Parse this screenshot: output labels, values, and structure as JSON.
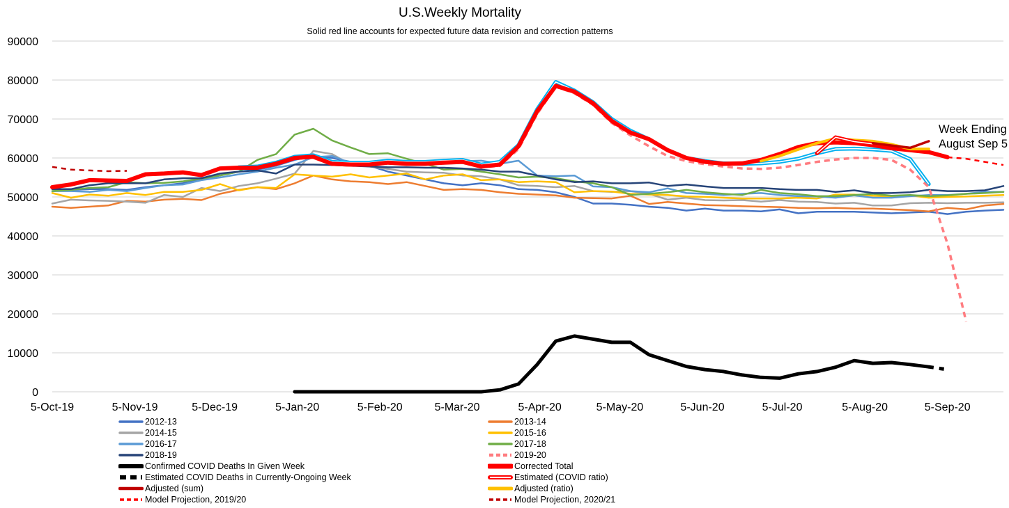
{
  "chart_data": {
    "type": "line",
    "title": "U.S.Weekly Mortality",
    "subtitle": "Solid red line accounts for expected future data revision and correction patterns",
    "annotation": [
      "Week Ending",
      "August Sep 5"
    ],
    "xlabel": "",
    "ylabel": "",
    "x_unit": "weeks since 5-Oct-19",
    "xlim": [
      0,
      51
    ],
    "ylim": [
      0,
      90000
    ],
    "yticks": [
      0,
      10000,
      20000,
      30000,
      40000,
      50000,
      60000,
      70000,
      80000,
      90000
    ],
    "xtick_labels": [
      "5-Oct-19",
      "5-Nov-19",
      "5-Dec-19",
      "5-Jan-20",
      "5-Feb-20",
      "5-Mar-20",
      "5-Apr-20",
      "5-May-20",
      "5-Jun-20",
      "5-Jul-20",
      "5-Aug-20",
      "5-Sep-20"
    ],
    "xtick_weeks": [
      0,
      4.43,
      8.71,
      13.14,
      17.57,
      21.71,
      26.14,
      30.43,
      34.86,
      39.14,
      43.57,
      48
    ],
    "grid": true,
    "legend_position": "bottom",
    "series": [
      {
        "name": "2012-13",
        "color": "#4472C4",
        "width": 2.5,
        "dash": "",
        "start": 0,
        "values": [
          51500,
          51800,
          52000,
          52000,
          51800,
          52500,
          53000,
          53500,
          54500,
          55500,
          56500,
          57000,
          58000,
          59500,
          60500,
          60000,
          59000,
          58000,
          56500,
          55500,
          54500,
          53500,
          53000,
          53500,
          53000,
          52000,
          51800,
          51200,
          50000,
          48300,
          48300,
          48000,
          47500,
          47200,
          46500,
          47000,
          46500,
          46500,
          46300,
          46800,
          45800,
          46200,
          46200,
          46200,
          46000,
          45800,
          46000,
          46200,
          45600,
          46200,
          46500,
          46700
        ]
      },
      {
        "name": "2013-14",
        "color": "#ED7D31",
        "width": 2.5,
        "dash": "",
        "start": 0,
        "values": [
          47500,
          47200,
          47500,
          47800,
          49000,
          48800,
          49300,
          49500,
          49200,
          50800,
          51800,
          52500,
          52000,
          53500,
          55500,
          54500,
          54000,
          53800,
          53300,
          53800,
          52800,
          51800,
          52000,
          51800,
          51200,
          50800,
          50600,
          50400,
          49800,
          49700,
          49600,
          50300,
          48200,
          48700,
          48300,
          47900,
          47800,
          47600,
          47500,
          47400,
          47200,
          47100,
          47200,
          47000,
          47000,
          46800,
          46600,
          46300,
          47200,
          46800,
          47800,
          48200
        ]
      },
      {
        "name": "2014-15",
        "color": "#A5A5A5",
        "width": 2.5,
        "dash": "",
        "start": 0,
        "values": [
          48300,
          49300,
          49100,
          49000,
          48800,
          48500,
          50500,
          50000,
          52300,
          51500,
          52800,
          53500,
          54700,
          56000,
          61800,
          61000,
          58300,
          57800,
          57200,
          56500,
          56300,
          56200,
          55500,
          55300,
          54500,
          53000,
          52800,
          52500,
          52800,
          51500,
          51300,
          51500,
          50800,
          49300,
          49800,
          49200,
          49100,
          49200,
          48800,
          49200,
          48800,
          48700,
          48300,
          48500,
          47800,
          47800,
          48400,
          48500,
          48400,
          48500,
          48500,
          48600
        ]
      },
      {
        "name": "2015-16",
        "color": "#FFC000",
        "width": 2.5,
        "dash": "",
        "start": 0,
        "values": [
          51000,
          49800,
          50600,
          50300,
          51000,
          50500,
          51300,
          51300,
          51800,
          53300,
          51700,
          52500,
          52300,
          55800,
          55500,
          55200,
          55800,
          55000,
          55500,
          56000,
          54500,
          55500,
          55800,
          54300,
          54500,
          53800,
          54000,
          53800,
          51200,
          51500,
          51400,
          50800,
          50600,
          50500,
          50100,
          50000,
          49800,
          49600,
          49600,
          49600,
          49800,
          49600,
          50600,
          50600,
          50300,
          50100,
          50400,
          49800,
          50000,
          50100,
          50300,
          50500
        ]
      },
      {
        "name": "2016-17",
        "color": "#5B9BD5",
        "width": 2.5,
        "dash": "",
        "start": 0,
        "values": [
          51500,
          51500,
          51300,
          51800,
          51500,
          52300,
          53000,
          53200,
          54300,
          55000,
          55800,
          56500,
          57500,
          58300,
          60200,
          60500,
          58700,
          58500,
          58800,
          58500,
          58800,
          58600,
          59200,
          59300,
          58500,
          59300,
          55500,
          55300,
          55500,
          52700,
          52500,
          51500,
          51200,
          52200,
          51000,
          50800,
          50500,
          50800,
          51000,
          50500,
          50200,
          50100,
          49800,
          50400,
          49800,
          49800,
          50200,
          50500,
          50500,
          50800,
          51300,
          51300
        ]
      },
      {
        "name": "2017-18",
        "color": "#70AD47",
        "width": 2.5,
        "dash": "",
        "start": 0,
        "values": [
          51500,
          51800,
          52300,
          52500,
          53800,
          53500,
          53600,
          54000,
          54700,
          55500,
          56500,
          59500,
          61000,
          66000,
          67500,
          64500,
          62700,
          61000,
          61200,
          59800,
          58500,
          57000,
          57200,
          56500,
          55800,
          55000,
          55200,
          54800,
          54000,
          53500,
          52500,
          50500,
          50800,
          51200,
          51800,
          51200,
          50800,
          50500,
          51800,
          51000,
          50700,
          50200,
          50200,
          50500,
          50800,
          50300,
          50500,
          50200,
          50400,
          50800,
          51000,
          51300
        ]
      },
      {
        "name": "2018-19",
        "color": "#264478",
        "width": 2.5,
        "dash": "",
        "start": 0,
        "values": [
          52000,
          52000,
          53000,
          53500,
          53500,
          53500,
          54500,
          54800,
          54800,
          56000,
          56500,
          56800,
          56000,
          58300,
          58300,
          58200,
          58000,
          57800,
          57600,
          57600,
          57500,
          57500,
          57300,
          57000,
          56500,
          56500,
          55500,
          54500,
          53800,
          54000,
          53500,
          53500,
          53700,
          52800,
          53200,
          52700,
          52300,
          52300,
          52300,
          52000,
          51800,
          51800,
          51300,
          51700,
          51000,
          51000,
          51200,
          51800,
          51500,
          51500,
          51700,
          52800
        ]
      },
      {
        "name": "2019-20",
        "color": "#FF7C80",
        "width": 3.5,
        "dash": "8,6",
        "start": 10,
        "values": [
          57300,
          57400,
          58300,
          59800,
          60100,
          58300,
          58100,
          58100,
          58600,
          58300,
          58300,
          58600,
          58800,
          57600,
          58000,
          62300,
          71300,
          78300,
          76600,
          73600,
          69000,
          65800,
          63000,
          60500,
          59200,
          58400,
          57800,
          57300,
          57200,
          57500,
          58200,
          59000,
          59600,
          60000,
          60000,
          59500,
          57000,
          52500,
          38000,
          18000
        ]
      },
      {
        "name": "",
        "color": "#00B0F0",
        "width": 2,
        "dash": "",
        "hollow": true,
        "start": 10,
        "values": [
          57600,
          57800,
          58800,
          60300,
          60700,
          59000,
          58800,
          58800,
          59300,
          59000,
          59000,
          59300,
          59500,
          58300,
          59000,
          63300,
          72500,
          79500,
          77300,
          74300,
          70000,
          67000,
          64800,
          62000,
          60000,
          59200,
          58600,
          58500,
          58600,
          59000,
          59800,
          61200,
          62300,
          62400,
          62200,
          61800,
          59700,
          53300
        ]
      },
      {
        "name": "Confirmed COVID Deaths In Given Week",
        "color": "#000000",
        "width": 5,
        "dash": "",
        "start": 13,
        "values": [
          0,
          0,
          0,
          0,
          0,
          0,
          0,
          0,
          0,
          0,
          0,
          500,
          2000,
          7000,
          13000,
          14300,
          13500,
          12700,
          12700,
          9500,
          8000,
          6500,
          5700,
          5200,
          4300,
          3700,
          3500,
          4600,
          5200,
          6300,
          8000,
          7300,
          7500,
          7000,
          6400
        ]
      },
      {
        "name": "Corrected Total",
        "color": "#FF0000",
        "width": 6,
        "dash": "",
        "start": 0,
        "values": [
          52500,
          53200,
          54300,
          54200,
          54100,
          55800,
          56000,
          56300,
          55600,
          57300,
          57500,
          57500,
          58500,
          60000,
          60300,
          58500,
          58300,
          58300,
          58800,
          58500,
          58500,
          58800,
          59000,
          57800,
          58300,
          63000,
          72000,
          78500,
          77000,
          74000,
          69500,
          66500,
          64800,
          62000,
          60000,
          59000,
          58500,
          58600,
          59500,
          61000,
          62800,
          63800,
          64000,
          63800,
          63300,
          62500,
          62000,
          61500,
          60200
        ]
      },
      {
        "name": "Estimated COVID Deaths in Currently-Ongoing Week",
        "color": "#000000",
        "width": 5,
        "dash": "7,8",
        "start": 47,
        "values": [
          6400,
          5700
        ]
      },
      {
        "name": "Estimated (COVID ratio)",
        "color": "#FF0000",
        "width": 2,
        "dash": "",
        "hollow": true,
        "start": 41,
        "values": [
          61200,
          65300,
          64200,
          63600
        ]
      },
      {
        "name": "Adjusted (sum)",
        "color": "#C00000",
        "width": 3.5,
        "dash": "",
        "start": 44,
        "values": [
          63800,
          63200,
          62600,
          64300
        ]
      },
      {
        "name": "Adjusted (ratio)",
        "color": "#FFC000",
        "width": 4,
        "dash": "",
        "start": 38,
        "values": [
          59200,
          60500,
          62200,
          63800,
          65000,
          64600,
          64300,
          63500,
          62300,
          62300
        ]
      },
      {
        "name": "Model Projection, 2019/20",
        "color": "#FF0000",
        "width": 2.5,
        "dash": "7,6",
        "start": 48,
        "values": [
          60200,
          59800,
          59000,
          58200
        ]
      },
      {
        "name": "Model Projection, 2020/21",
        "color": "#C00000",
        "width": 2.5,
        "dash": "7,6",
        "start": 0,
        "values": [
          57700,
          57000,
          56800,
          56600,
          56700
        ]
      }
    ],
    "legend_order": [
      0,
      1,
      2,
      3,
      4,
      5,
      6,
      7,
      9,
      10,
      11,
      12,
      13,
      14,
      15,
      16
    ]
  }
}
